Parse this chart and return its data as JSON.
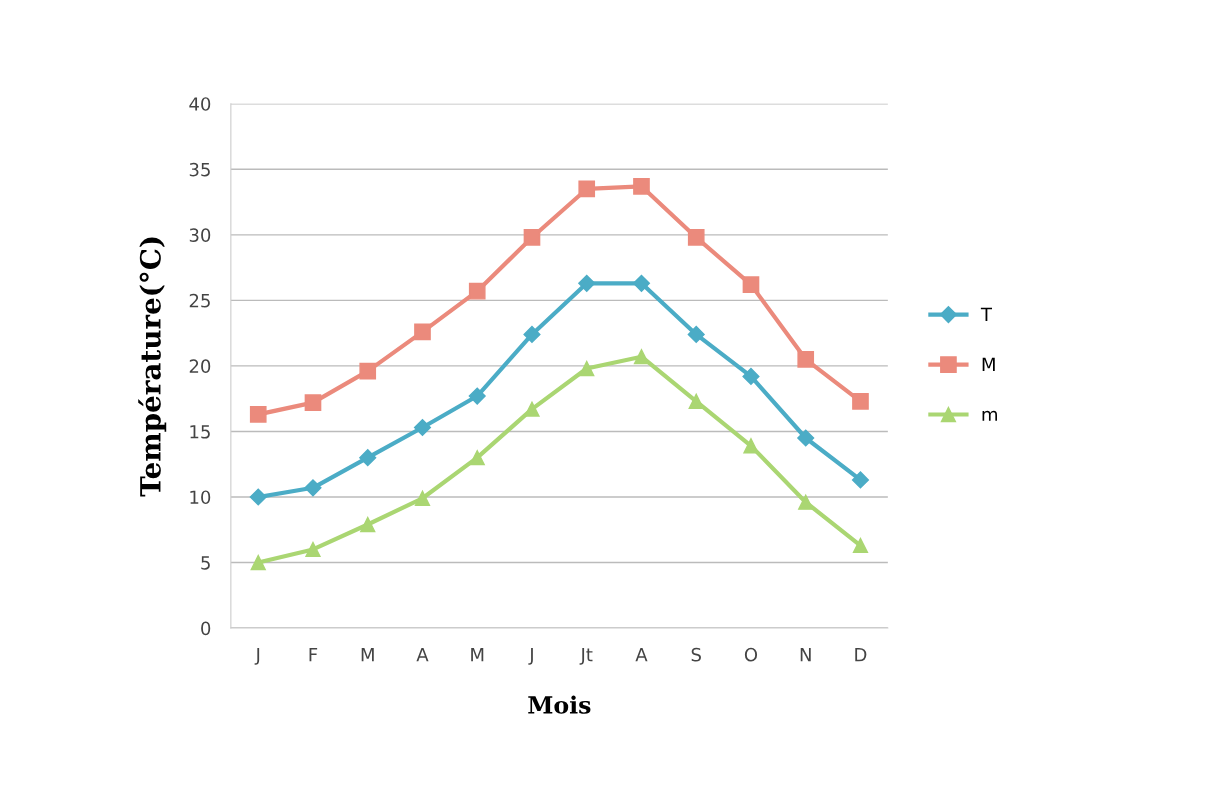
{
  "chart_data": {
    "type": "line",
    "xlabel": "Mois",
    "ylabel": "Température(°C)",
    "categories": [
      "J",
      "F",
      "M",
      "A",
      "M",
      "J",
      "Jt",
      "A",
      "S",
      "O",
      "N",
      "D"
    ],
    "series": [
      {
        "name": "T",
        "color": "#4bacc6",
        "marker": "diamond",
        "values": [
          10.0,
          10.7,
          13.0,
          15.3,
          17.7,
          22.4,
          26.3,
          26.3,
          22.4,
          19.2,
          14.5,
          11.3
        ]
      },
      {
        "name": "M",
        "color": "#eb8a7c",
        "marker": "square",
        "values": [
          16.3,
          17.2,
          19.6,
          22.6,
          25.7,
          29.8,
          33.5,
          33.7,
          29.8,
          26.2,
          20.5,
          17.3
        ]
      },
      {
        "name": "m",
        "color": "#aad672",
        "marker": "triangle",
        "values": [
          5.0,
          6.0,
          7.9,
          9.9,
          13.0,
          16.7,
          19.8,
          20.7,
          17.3,
          13.9,
          9.6,
          6.3
        ]
      }
    ],
    "ylim": [
      0,
      40
    ],
    "yticks": [
      0,
      5,
      10,
      15,
      20,
      25,
      30,
      35,
      40
    ],
    "grid": "y",
    "legend": "right",
    "line_style": "solid"
  }
}
